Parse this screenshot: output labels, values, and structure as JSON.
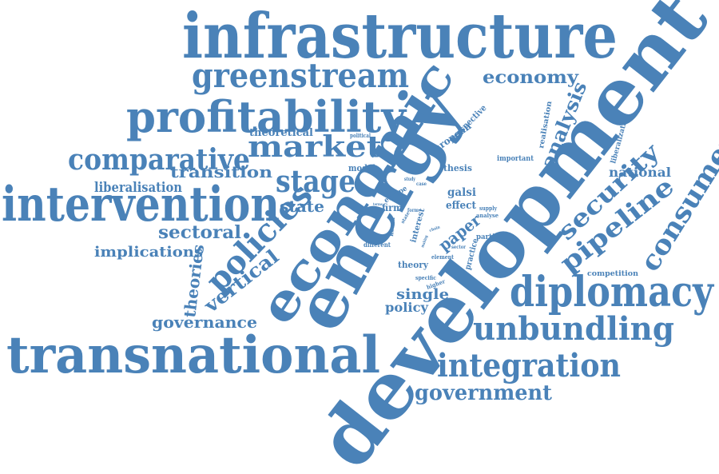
{
  "colors": {
    "word": "#4a82b8",
    "background": "#ffffff"
  },
  "words": [
    "infrastructure",
    "development",
    "energy",
    "economic",
    "transnational",
    "intervention",
    "profitability",
    "greenstream",
    "diplomacy",
    "unbundling",
    "integration",
    "government",
    "market",
    "comparative",
    "stage",
    "policies",
    "consumer",
    "pipeline",
    "security",
    "economy",
    "analysis",
    "national",
    "transition",
    "liberalisation",
    "state",
    "sectoral",
    "implications",
    "vertical",
    "theories",
    "governance",
    "single",
    "policy",
    "theory",
    "paper",
    "galsi",
    "effect",
    "thesis",
    "european",
    "perspective",
    "realisation",
    "liberalization",
    "important",
    "model",
    "theoretical",
    "competition",
    "particular",
    "practice",
    "interest",
    "firm",
    "europe",
    "explore",
    "different",
    "korea",
    "specific",
    "higher",
    "analyse",
    "supply",
    "element",
    "political",
    "third",
    "study",
    "case",
    "terms",
    "form",
    "chain",
    "sector",
    "making",
    "state"
  ]
}
